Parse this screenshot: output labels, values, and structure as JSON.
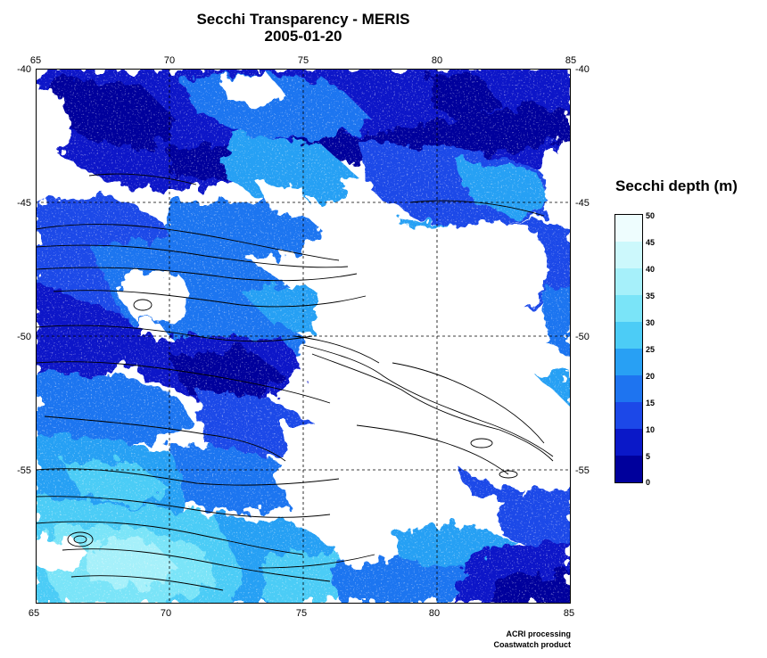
{
  "title": "Secchi Transparency - MERIS",
  "date": "2005-01-20",
  "legend": {
    "title": "Secchi depth (m)",
    "ticks": [
      "50",
      "45",
      "40",
      "35",
      "30",
      "25",
      "20",
      "15",
      "10",
      "5",
      "0"
    ],
    "bins": [
      {
        "min": 0,
        "max": 5,
        "color": "#00009c"
      },
      {
        "min": 5,
        "max": 10,
        "color": "#0a18c8"
      },
      {
        "min": 10,
        "max": 15,
        "color": "#1c48e8"
      },
      {
        "min": 15,
        "max": 20,
        "color": "#1e74f0"
      },
      {
        "min": 20,
        "max": 25,
        "color": "#28a0f4"
      },
      {
        "min": 25,
        "max": 30,
        "color": "#4cccf6"
      },
      {
        "min": 30,
        "max": 35,
        "color": "#7ae4f8"
      },
      {
        "min": 35,
        "max": 40,
        "color": "#a6f0fa"
      },
      {
        "min": 40,
        "max": 45,
        "color": "#ccf8fc"
      },
      {
        "min": 45,
        "max": 50,
        "color": "#eefdfe"
      }
    ]
  },
  "map": {
    "lon_range": [
      65,
      85
    ],
    "lat_range": [
      -60,
      -40
    ],
    "lon_ticks": [
      "65",
      "70",
      "75",
      "80",
      "85"
    ],
    "lat_ticks": [
      "-40",
      "-45",
      "-50",
      "-55"
    ],
    "no_data_color": "#ffffff",
    "grid": "dashed"
  },
  "credits": [
    "ACRI processing",
    "Coastwatch product"
  ]
}
